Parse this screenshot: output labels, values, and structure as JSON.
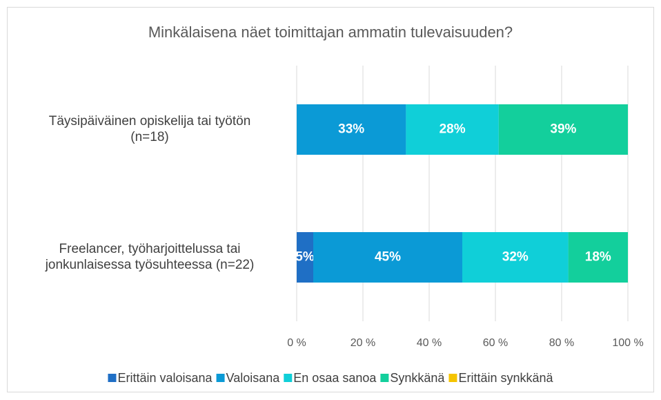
{
  "chart_data": {
    "type": "stacked_barh",
    "title": "Minkälaisena näet toimittajan ammatin tulevaisuuden?",
    "categories": [
      "Täysipäiväinen opiskelija tai työtön\n(n=18)",
      "Freelancer, työharjoittelussa tai\njonkunlaisessa työsuhteessa (n=22)"
    ],
    "series": [
      {
        "name": "Erittäin valoisana",
        "color": "#1f6fc5",
        "values": [
          0,
          5
        ],
        "value_labels": [
          null,
          "5%"
        ]
      },
      {
        "name": "Valoisana",
        "color": "#0b9ad6",
        "values": [
          33,
          45
        ],
        "value_labels": [
          "33%",
          "45%"
        ]
      },
      {
        "name": "En osaa sanoa",
        "color": "#10cfd8",
        "values": [
          28,
          32
        ],
        "value_labels": [
          "28%",
          "32%"
        ]
      },
      {
        "name": "Synkkänä",
        "color": "#13cf9c",
        "values": [
          39,
          18
        ],
        "value_labels": [
          "39%",
          "18%"
        ]
      },
      {
        "name": "Erittäin synkkänä",
        "color": "#f5c400",
        "values": [
          0,
          0
        ],
        "value_labels": [
          null,
          null
        ]
      }
    ],
    "xlim": [
      0,
      100
    ],
    "xticks": [
      {
        "value": 0,
        "label": "0 %"
      },
      {
        "value": 20,
        "label": "20 %"
      },
      {
        "value": 40,
        "label": "40 %"
      },
      {
        "value": 60,
        "label": "60 %"
      },
      {
        "value": 80,
        "label": "80 %"
      },
      {
        "value": 100,
        "label": "100 %"
      }
    ],
    "grid": true,
    "legend": "bottom"
  }
}
